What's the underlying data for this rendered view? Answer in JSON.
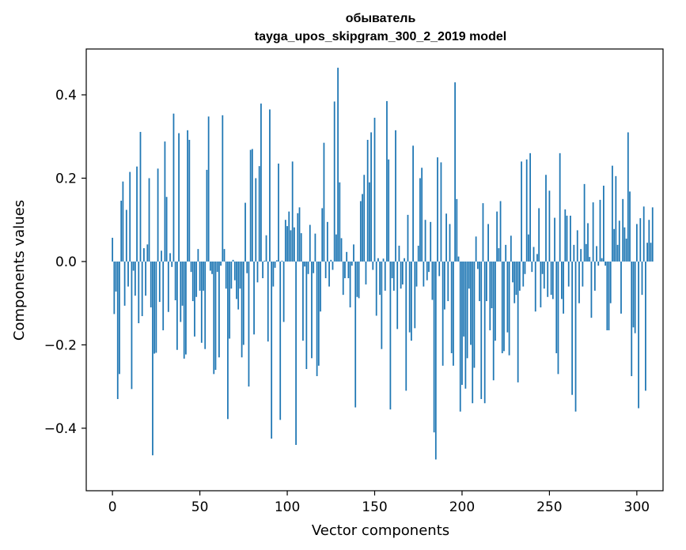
{
  "chart_data": {
    "type": "bar",
    "title": "обыватель",
    "subtitle": "tayga_upos_skipgram_300_2_2019 model",
    "xlabel": "Vector components",
    "ylabel": "Components values",
    "xlim": [
      -15,
      315
    ],
    "ylim": [
      -0.55,
      0.51
    ],
    "xticks": [
      0,
      50,
      100,
      150,
      200,
      250,
      300
    ],
    "xtick_labels": [
      "0",
      "50",
      "100",
      "150",
      "200",
      "250",
      "300"
    ],
    "yticks": [
      -0.4,
      -0.2,
      0.0,
      0.2,
      0.4
    ],
    "ytick_labels": [
      "−0.4",
      "−0.2",
      "0.0",
      "0.2",
      "0.4"
    ],
    "grid": false,
    "color": "#1f77b4",
    "values": [
      0.057,
      -0.126,
      -0.072,
      -0.33,
      -0.27,
      0.146,
      0.192,
      -0.106,
      0.124,
      -0.06,
      0.215,
      -0.306,
      -0.022,
      -0.082,
      0.228,
      -0.148,
      0.311,
      -0.131,
      0.032,
      -0.082,
      0.041,
      0.2,
      -0.11,
      -0.465,
      -0.221,
      -0.219,
      0.223,
      -0.097,
      0.026,
      -0.165,
      0.288,
      0.155,
      -0.121,
      0.02,
      -0.013,
      0.355,
      -0.093,
      -0.212,
      0.308,
      -0.145,
      -0.106,
      -0.233,
      -0.223,
      0.315,
      0.292,
      -0.025,
      -0.095,
      -0.18,
      -0.085,
      0.03,
      -0.07,
      -0.195,
      -0.07,
      -0.21,
      0.22,
      0.348,
      -0.022,
      -0.03,
      -0.27,
      -0.26,
      -0.025,
      -0.23,
      -0.01,
      0.351,
      0.03,
      -0.065,
      -0.378,
      -0.185,
      -0.065,
      0.004,
      -0.045,
      -0.09,
      -0.115,
      -0.065,
      -0.23,
      -0.2,
      0.141,
      -0.028,
      -0.3,
      0.268,
      0.27,
      -0.175,
      0.2,
      -0.05,
      0.229,
      0.379,
      -0.04,
      0.002,
      0.063,
      -0.192,
      0.365,
      -0.425,
      -0.06,
      -0.015,
      0.003,
      0.235,
      -0.38,
      0.002,
      -0.145,
      0.1,
      0.085,
      0.12,
      0.075,
      0.24,
      0.082,
      -0.44,
      0.116,
      0.13,
      0.068,
      -0.19,
      -0.012,
      -0.258,
      -0.03,
      0.088,
      -0.232,
      -0.028,
      0.067,
      -0.275,
      -0.25,
      -0.12,
      0.128,
      0.285,
      -0.04,
      0.095,
      -0.06,
      0.004,
      -0.02,
      0.384,
      0.065,
      0.465,
      0.19,
      0.056,
      -0.08,
      -0.04,
      0.023,
      -0.04,
      -0.11,
      -0.01,
      0.041,
      -0.35,
      -0.085,
      -0.088,
      0.145,
      0.162,
      0.208,
      -0.055,
      0.292,
      0.19,
      0.31,
      -0.02,
      0.345,
      -0.13,
      0.008,
      -0.08,
      -0.21,
      0.007,
      -0.07,
      0.385,
      0.245,
      -0.355,
      -0.04,
      -0.07,
      0.315,
      -0.162,
      0.038,
      -0.065,
      -0.055,
      0.008,
      -0.31,
      0.112,
      -0.17,
      -0.19,
      0.278,
      -0.16,
      -0.06,
      0.038,
      0.2,
      0.225,
      -0.06,
      0.1,
      -0.045,
      -0.025,
      0.095,
      -0.092,
      -0.41,
      -0.475,
      0.25,
      -0.035,
      0.238,
      -0.25,
      -0.115,
      0.115,
      -0.095,
      0.09,
      -0.22,
      -0.25,
      0.43,
      0.15,
      0.012,
      -0.36,
      -0.296,
      -0.18,
      -0.305,
      -0.232,
      -0.065,
      -0.2,
      -0.34,
      -0.255,
      0.06,
      -0.018,
      -0.095,
      -0.33,
      0.14,
      -0.34,
      -0.095,
      0.09,
      -0.165,
      -0.112,
      -0.285,
      -0.19,
      0.12,
      0.032,
      0.145,
      -0.22,
      -0.215,
      0.04,
      -0.17,
      -0.225,
      0.062,
      -0.05,
      -0.1,
      -0.08,
      -0.29,
      -0.07,
      0.24,
      -0.06,
      -0.03,
      0.245,
      0.065,
      0.26,
      -0.025,
      0.035,
      -0.12,
      0.018,
      0.128,
      -0.11,
      -0.03,
      -0.065,
      0.208,
      -0.085,
      0.17,
      -0.08,
      -0.09,
      0.105,
      -0.22,
      -0.27,
      0.26,
      -0.09,
      -0.125,
      0.125,
      0.11,
      -0.06,
      0.11,
      -0.32,
      0.04,
      -0.36,
      0.075,
      -0.1,
      0.03,
      -0.06,
      0.186,
      0.042,
      0.092,
      0.011,
      -0.135,
      0.142,
      -0.07,
      0.037,
      -0.01,
      0.148,
      0.008,
      0.182,
      -0.01,
      -0.165,
      -0.165,
      -0.1,
      0.23,
      0.078,
      0.205,
      0.04,
      0.098,
      -0.125,
      0.15,
      0.082,
      0.055,
      0.31,
      0.168,
      -0.275,
      -0.158,
      -0.172,
      0.09,
      -0.352,
      0.104,
      -0.08,
      0.132,
      -0.31,
      0.045,
      0.1,
      0.045,
      0.13
    ]
  }
}
